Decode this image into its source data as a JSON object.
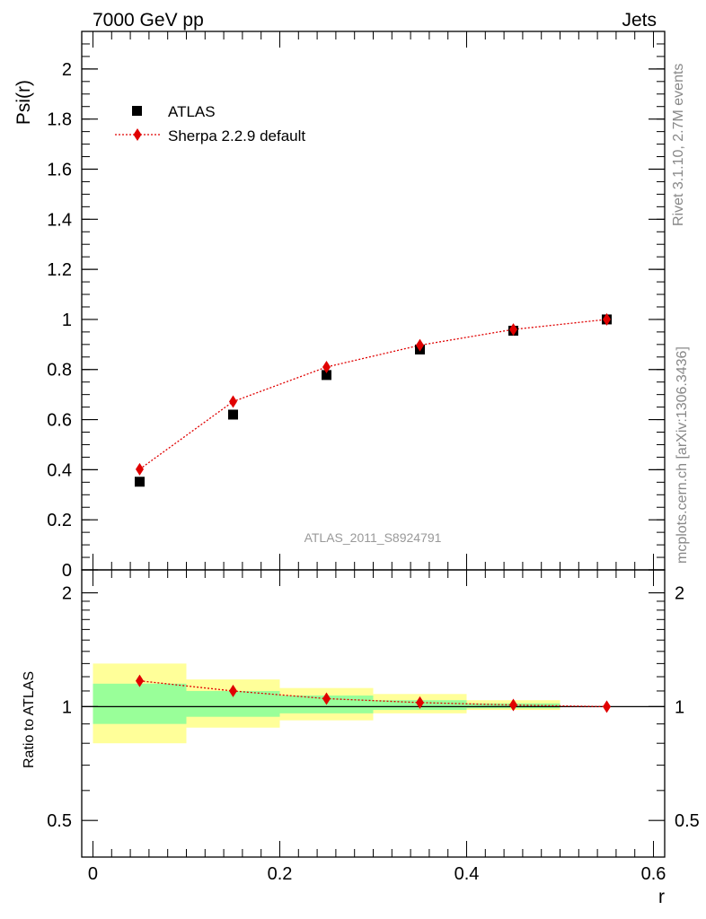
{
  "header": {
    "energy": "7000 GeV pp",
    "process": "Jets"
  },
  "side_labels": {
    "rivet": "Rivet 3.1.10,  2.7M events",
    "mcplots": "mcplots.cern.ch [arXiv:1306.3436]"
  },
  "analysis_label": "ATLAS_2011_S8924791",
  "colors": {
    "data": "#000000",
    "mc": "#e00000",
    "band_inner": "#99ff99",
    "band_outer": "#ffff99"
  },
  "chart_data": [
    {
      "type": "scatter",
      "panel": "main",
      "ylabel": "Psi(r)",
      "xlim": [
        -0.012,
        0.612
      ],
      "ylim": [
        0,
        2.15
      ],
      "yticks": [
        "0",
        "0.2",
        "0.4",
        "0.6",
        "0.8",
        "1",
        "1.2",
        "1.4",
        "1.6",
        "1.8",
        "2"
      ],
      "legend_position": "top-left",
      "series": [
        {
          "name": "ATLAS",
          "style": "square-marker",
          "x": [
            0.05,
            0.15,
            0.25,
            0.35,
            0.45,
            0.55
          ],
          "y": [
            0.352,
            0.62,
            0.778,
            0.88,
            0.955,
            1.0
          ]
        },
        {
          "name": "Sherpa 2.2.9 default",
          "style": "diamond-dotted-line",
          "x": [
            0.05,
            0.15,
            0.25,
            0.35,
            0.45,
            0.55
          ],
          "y": [
            0.402,
            0.672,
            0.81,
            0.897,
            0.96,
            1.0
          ]
        }
      ]
    },
    {
      "type": "scatter",
      "panel": "ratio",
      "ylabel": "Ratio to ATLAS",
      "xlabel": "r",
      "xlim": [
        -0.012,
        0.612
      ],
      "ylim": [
        0.4,
        2.3
      ],
      "log_scale_y": true,
      "yticks": [
        "0.5",
        "1",
        "2"
      ],
      "xticks": [
        "0",
        "0.2",
        "0.4",
        "0.6"
      ],
      "reference_line": 1,
      "bands": [
        {
          "x_low": 0.0,
          "x_high": 0.1,
          "inner": [
            0.9,
            1.15
          ],
          "outer": [
            0.8,
            1.3
          ]
        },
        {
          "x_low": 0.1,
          "x_high": 0.2,
          "inner": [
            0.94,
            1.1
          ],
          "outer": [
            0.88,
            1.18
          ]
        },
        {
          "x_low": 0.2,
          "x_high": 0.3,
          "inner": [
            0.96,
            1.07
          ],
          "outer": [
            0.92,
            1.12
          ]
        },
        {
          "x_low": 0.3,
          "x_high": 0.4,
          "inner": [
            0.98,
            1.04
          ],
          "outer": [
            0.96,
            1.08
          ]
        },
        {
          "x_low": 0.4,
          "x_high": 0.5,
          "inner": [
            0.99,
            1.02
          ],
          "outer": [
            0.98,
            1.04
          ]
        }
      ],
      "series": [
        {
          "name": "Sherpa 2.2.9 default",
          "style": "diamond-dotted-line",
          "x": [
            0.05,
            0.15,
            0.25,
            0.35,
            0.45,
            0.55
          ],
          "y": [
            1.17,
            1.1,
            1.05,
            1.025,
            1.01,
            1.0
          ]
        }
      ]
    }
  ]
}
